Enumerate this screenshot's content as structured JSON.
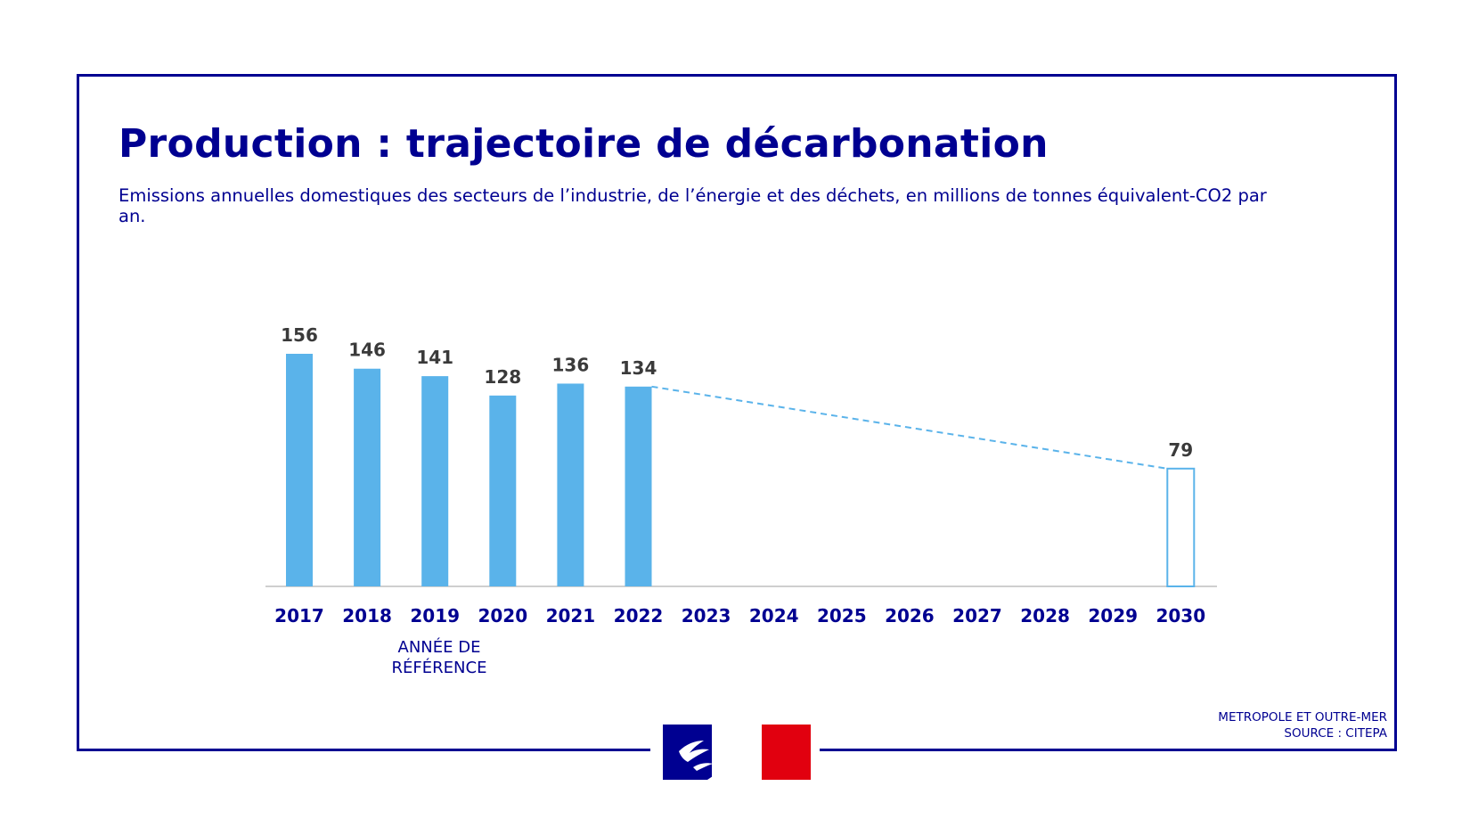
{
  "header": {
    "title": "Production : trajectoire de décarbonation",
    "subtitle": "Emissions annuelles domestiques des secteurs de l’industrie, de l’énergie et des déchets, en millions de tonnes équivalent-CO2 par an."
  },
  "chart_data": {
    "type": "bar",
    "title": "Production : trajectoire de décarbonation",
    "subtitle": "Emissions annuelles domestiques des secteurs de l’industrie, de l’énergie et des déchets, en millions de tonnes équivalent-CO2 par an.",
    "categories": [
      "2017",
      "2018",
      "2019",
      "2020",
      "2021",
      "2022",
      "2023",
      "2024",
      "2025",
      "2026",
      "2027",
      "2028",
      "2029",
      "2030"
    ],
    "values": [
      156,
      146,
      141,
      128,
      136,
      134,
      null,
      null,
      null,
      null,
      null,
      null,
      null,
      79
    ],
    "target": {
      "year": "2030",
      "value": 79,
      "style": "outlined"
    },
    "trend_line": {
      "from": "2022",
      "to": "2030",
      "style": "dashed"
    },
    "annotation": {
      "category": "2019",
      "lines": [
        "ANNÉE DE",
        "RÉFÉRENCE"
      ]
    },
    "ylim": [
      0,
      156
    ],
    "grid": false,
    "legend": "none",
    "colors": {
      "bar": "#5ab3ea",
      "axis": "#cfcfcf",
      "tick": "#000091",
      "value_label": "#3a3a3a",
      "frame": "#000091"
    }
  },
  "footnote": {
    "line1": "METROPOLE ET OUTRE-MER",
    "line2": "SOURCE : CITEPA"
  },
  "logo": {
    "icon": "marianne-logo",
    "colors": [
      "#000091",
      "#ffffff",
      "#e1000f"
    ]
  }
}
